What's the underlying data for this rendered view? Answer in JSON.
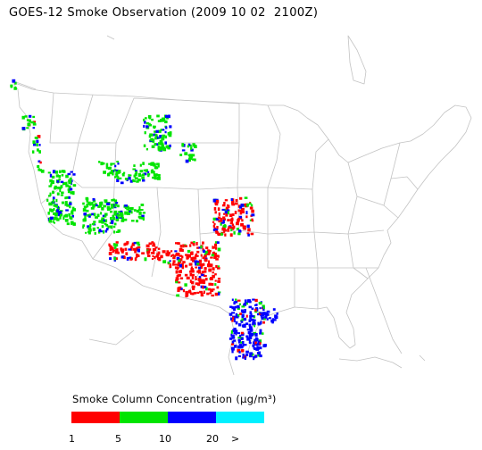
{
  "title": "GOES-12 Smoke Observation (2009 10 02  2100Z)",
  "legend": {
    "title": "Smoke Column Concentration (µg/m³)",
    "classes": [
      {
        "color": "#ff0000"
      },
      {
        "color": "#00e400"
      },
      {
        "color": "#0000ff"
      },
      {
        "color": "#00f0ff"
      }
    ],
    "ticks": [
      "1",
      "5",
      "10",
      "20",
      ">"
    ]
  },
  "map": {
    "basemap": "United States with state boundaries, Canada and Mexico coastlines",
    "outline_color": "#bfbfbf",
    "smoke_regions": [
      {
        "region": "pacific-northwest",
        "colors": [
          "green",
          "red",
          "blue"
        ]
      },
      {
        "region": "northern-rockies",
        "colors": [
          "green",
          "blue"
        ]
      },
      {
        "region": "great-basin",
        "colors": [
          "green",
          "blue"
        ]
      },
      {
        "region": "kansas-missouri",
        "colors": [
          "red",
          "green",
          "blue"
        ]
      },
      {
        "region": "texas-oklahoma",
        "colors": [
          "red",
          "green",
          "blue"
        ]
      },
      {
        "region": "south-texas-gulf",
        "colors": [
          "blue",
          "green",
          "red"
        ]
      }
    ]
  }
}
